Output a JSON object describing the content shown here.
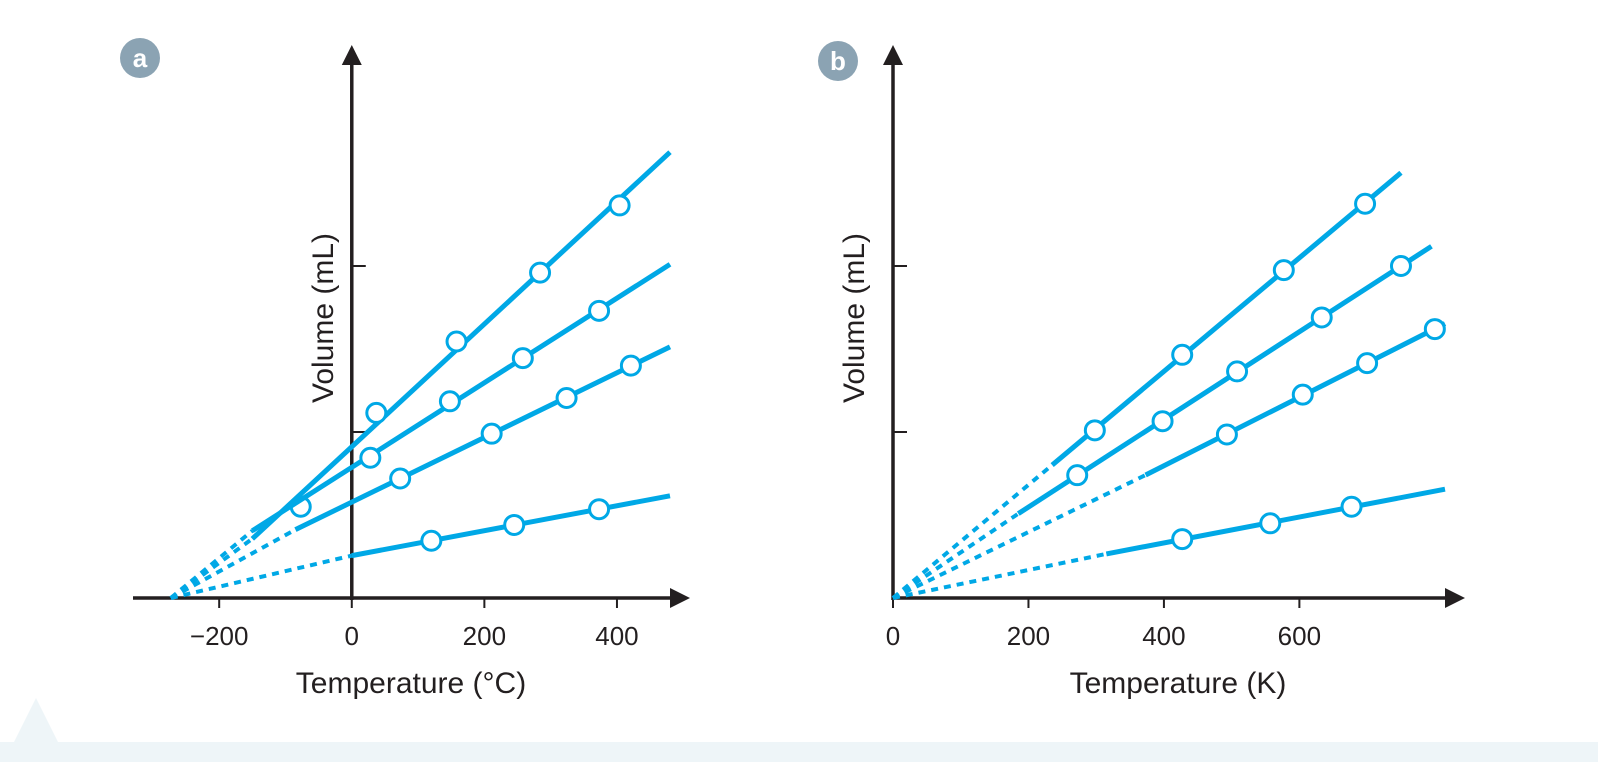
{
  "colors": {
    "series": "#00a8e6",
    "axis": "#231f20",
    "badge": "#8ba3b3",
    "badge_text": "#ffffff",
    "text": "#231f20"
  },
  "chart_data": [
    {
      "panel": "a",
      "type": "line",
      "xlabel": "Temperature (°C)",
      "ylabel": "Volume (mL)",
      "x_ticks": [
        -200,
        0,
        200,
        400
      ],
      "x_tick_labels": [
        "−200",
        "0",
        "200",
        "400"
      ],
      "y_ticks": [
        20,
        40
      ],
      "xlim": [
        -330,
        480
      ],
      "ylim": [
        0,
        60
      ],
      "extrapolate_to": -273,
      "series": [
        {
          "points": [
            [
              -77,
              11.0
            ],
            [
              37,
              22.3
            ],
            [
              158,
              30.9
            ],
            [
              284,
              39.2
            ],
            [
              404,
              47.3
            ]
          ],
          "line_x": [
            -150,
            480
          ],
          "dashed_x": [
            -273,
            -150
          ]
        },
        {
          "points": [
            [
              28,
              16.9
            ],
            [
              148,
              23.7
            ],
            [
              258,
              28.9
            ],
            [
              373,
              34.6
            ]
          ],
          "line_x": [
            -150,
            480
          ],
          "dashed_x": [
            -273,
            -150
          ]
        },
        {
          "points": [
            [
              73,
              14.4
            ],
            [
              211,
              19.8
            ],
            [
              324,
              24.1
            ],
            [
              421,
              28.0
            ]
          ],
          "line_x": [
            -85,
            480
          ],
          "dashed_x": [
            -273,
            -85
          ]
        },
        {
          "points": [
            [
              120,
              6.9
            ],
            [
              245,
              8.8
            ],
            [
              373,
              10.7
            ]
          ],
          "line_x": [
            0,
            480
          ],
          "dashed_x": [
            -273,
            0
          ]
        }
      ]
    },
    {
      "panel": "b",
      "type": "line",
      "xlabel": "Temperature (K)",
      "ylabel": "Volume (mL)",
      "x_ticks": [
        0,
        200,
        400,
        600
      ],
      "x_tick_labels": [
        "0",
        "200",
        "400",
        "600"
      ],
      "y_ticks": [
        20,
        40
      ],
      "xlim": [
        0,
        815
      ],
      "ylim": [
        0,
        60
      ],
      "extrapolate_to": 0,
      "series": [
        {
          "points": [
            [
              298,
              20.2
            ],
            [
              427,
              29.3
            ],
            [
              577,
              39.5
            ],
            [
              697,
              47.5
            ]
          ],
          "line_x": [
            235,
            750
          ],
          "dashed_x": [
            0,
            235
          ]
        },
        {
          "points": [
            [
              272,
              14.8
            ],
            [
              398,
              21.3
            ],
            [
              508,
              27.3
            ],
            [
              633,
              33.8
            ],
            [
              750,
              40.0
            ]
          ],
          "line_x": [
            185,
            795
          ],
          "dashed_x": [
            0,
            185
          ]
        },
        {
          "points": [
            [
              493,
              19.7
            ],
            [
              605,
              24.5
            ],
            [
              700,
              28.3
            ],
            [
              800,
              32.4
            ]
          ],
          "line_x": [
            373,
            815
          ],
          "dashed_x": [
            0,
            373
          ]
        },
        {
          "points": [
            [
              427,
              7.1
            ],
            [
              557,
              9.0
            ],
            [
              677,
              11.0
            ]
          ],
          "line_x": [
            315,
            815
          ],
          "dashed_x": [
            0,
            315
          ]
        }
      ]
    }
  ]
}
